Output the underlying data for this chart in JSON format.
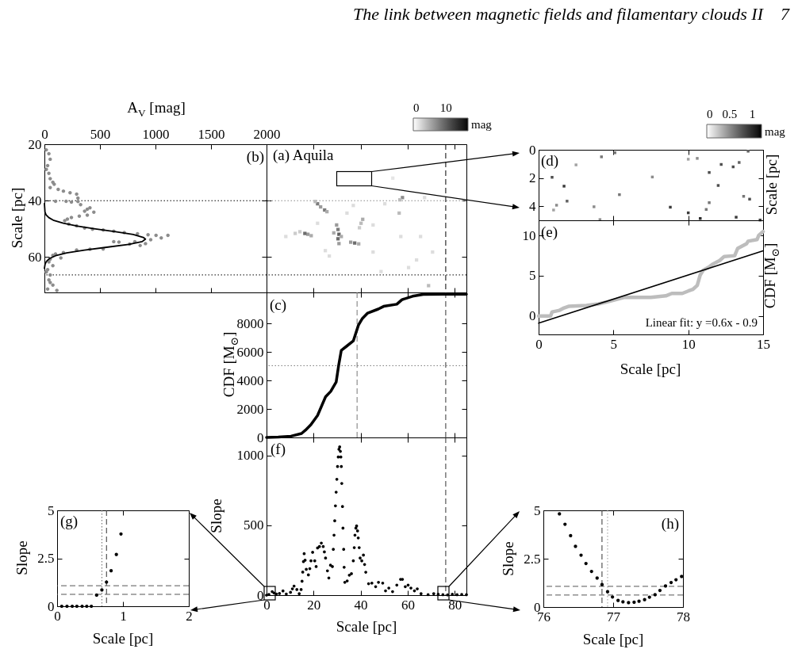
{
  "chart_data": [
    {
      "type": "scatter",
      "xlabel": "A$_{V}$ [mag]",
      "ylabel": "Scale [pc]",
      "annotations": [
        "(b)",
        "The link between magnetic fields and filamentary clouds II",
        "7"
      ],
      "xlim": [
        0,
        2000
      ],
      "xticks": [
        0,
        500,
        1000,
        1500,
        2000
      ],
      "ylim": [
        72.5,
        20
      ],
      "yticks": [
        20,
        40,
        60
      ],
      "ref_lines": [
        {
          "axis": "y",
          "value": 40,
          "line_style": "dotted",
          "color": "#000000"
        },
        {
          "axis": "y",
          "value": 66.3,
          "line_style": "dotted",
          "color": "#000000"
        }
      ],
      "series": [
        {
          "type": "scatter",
          "marker": "circle",
          "color": "#8c8c8c",
          "x": [
            17,
            40,
            52,
            29,
            17,
            40,
            52,
            76,
            88,
            52,
            124,
            171,
            231,
            290,
            302,
            100,
            195,
            243,
            302,
            326,
            410,
            386,
            362,
            445,
            386,
            314,
            243,
            207,
            183,
            219,
            290,
            362,
            433,
            529,
            624,
            719,
            838,
            933,
            1005,
            1112,
            1052,
            957,
            814,
            624,
            671,
            910,
            767,
            862,
            529,
            410,
            290,
            171,
            100,
            76,
            148,
            52,
            40,
            76,
            29,
            17,
            52,
            40,
            52,
            76,
            29,
            112
          ],
          "values": [
            22.0,
            23.4,
            25.3,
            27.6,
            28.9,
            30.3,
            32.2,
            33.5,
            34.2,
            35.4,
            36.0,
            36.6,
            37.2,
            37.7,
            39.1,
            40.2,
            40.2,
            40.5,
            40.3,
            41.4,
            42.5,
            43.0,
            43.7,
            44.1,
            45.1,
            45.5,
            46.0,
            46.5,
            47.1,
            48.3,
            48.9,
            49.7,
            50.1,
            50.4,
            50.8,
            51.3,
            51.7,
            52.1,
            52.3,
            52.3,
            53.2,
            53.8,
            54.5,
            54.5,
            54.7,
            55.2,
            55.4,
            55.9,
            57.1,
            57.2,
            57.5,
            58.4,
            58.9,
            59.4,
            60.3,
            60.7,
            61.7,
            63.0,
            64.4,
            65.3,
            66.3,
            68.1,
            69.0,
            69.9,
            71.3,
            71.8
          ]
        },
        {
          "type": "line",
          "color": "#000000",
          "x": [
            0,
            5,
            15,
            40,
            85,
            170,
            300,
            460,
            640,
            800,
            890,
            910,
            880,
            760,
            560,
            360,
            200,
            100,
            45,
            18,
            6,
            0
          ],
          "values": [
            41,
            44,
            45,
            46,
            47,
            48,
            49,
            50,
            51,
            52,
            53,
            53.6,
            54.5,
            55.5,
            56.5,
            57.5,
            58.5,
            59.5,
            60.5,
            61.5,
            62.5,
            64
          ]
        }
      ]
    },
    {
      "type": "scatter",
      "annotations": [
        "(a) Aquila"
      ],
      "xlim": [
        0,
        85
      ],
      "xticks": [
        0,
        20,
        40,
        60,
        80
      ],
      "ylim": [
        72.5,
        20
      ],
      "yticks": [
        20,
        40,
        60
      ],
      "tick_labels": false,
      "marker": "square",
      "clabel": "mag",
      "clim": [
        0,
        16.7
      ],
      "cticks": [
        0,
        10
      ],
      "ref_lines": [
        {
          "axis": "y",
          "value": 40,
          "line_style": "dotted",
          "color": "#888888"
        },
        {
          "axis": "y",
          "value": 66.3,
          "line_style": "dotted",
          "color": "#000000"
        },
        {
          "axis": "x",
          "value": 76.2,
          "line_style": "dashed",
          "color": "#000000"
        }
      ],
      "series": [
        {
          "x": [
            23.0,
            21.7,
            24.7,
            20.7,
            25.7,
            17.6,
            16.3,
            19.0,
            14.2,
            29.8,
            30.4,
            30.8,
            30.4,
            30.8,
            28.6,
            31.8,
            37.5,
            35.8,
            39.2,
            40.2,
            40.9,
            39.5,
            57.8,
            56.7,
            56.4,
            68.9,
            60.4,
            12.2,
            25.0,
            45.3,
            63.8,
            50.3,
            21.7,
            65.5,
            8.2,
            48.7,
            70.6,
            34.2,
            45.3,
            36.9,
            26.7,
            57.1,
            67.2,
            53.7
          ],
          "values": [
            42.2,
            41.1,
            43.3,
            40.3,
            43.9,
            51.9,
            51.6,
            52.4,
            51.0,
            48.6,
            50.2,
            51.9,
            53.5,
            55.2,
            51.4,
            52.7,
            55.0,
            54.7,
            55.3,
            48.0,
            46.6,
            49.6,
            38.9,
            39.7,
            44.4,
            70.1,
            63.7,
            51.6,
            57.7,
            58.2,
            61.0,
            41.1,
            48.0,
            52.7,
            52.7,
            65.1,
            58.2,
            44.4,
            48.6,
            41.7,
            59.6,
            52.7,
            38.9,
            32.0
          ],
          "cvalues": [
            6,
            8,
            8,
            4,
            5,
            6,
            9,
            5,
            3,
            6,
            8,
            10,
            9,
            6,
            5,
            5,
            9,
            6,
            5,
            4,
            5,
            3,
            7,
            4,
            4,
            4,
            2,
            3,
            2,
            2,
            2,
            2,
            2,
            2,
            2,
            2,
            2,
            2,
            2,
            2,
            2,
            2,
            2,
            1.5
          ]
        }
      ]
    },
    {
      "type": "scatter",
      "ylabel": "Scale [pc]",
      "annotations": [
        "(d)"
      ],
      "xlim": [
        0,
        15
      ],
      "xticks": [
        0,
        5,
        10,
        15
      ],
      "ylim": [
        5,
        0
      ],
      "yticks": [
        0,
        2,
        4
      ],
      "tick_labels": "y",
      "marker": "square",
      "clabel": "mag",
      "clim": [
        0,
        1.2
      ],
      "cticks": [
        0,
        0.5,
        1
      ],
      "series": [
        {
          "x": [
            0.9,
            1.7,
            1.9,
            4.2,
            5.1,
            5.4,
            8.8,
            10.0,
            10.8,
            11.4,
            12.0,
            12.2,
            13.0,
            13.4,
            14.0,
            14.1,
            13.2,
            14.8,
            13.7,
            11.4,
            7.6,
            3.7,
            1.2,
            2.5,
            10.0,
            10.6,
            11.2,
            1.0,
            4.1
          ],
          "values": [
            1.95,
            2.58,
            3.64,
            0.5,
            0.21,
            3.18,
            4.07,
            4.47,
            4.87,
            1.61,
            2.53,
            1.04,
            1.21,
            0.9,
            0.1,
            3.5,
            4.78,
            4.98,
            3.3,
            3.75,
            1.93,
            4.04,
            3.93,
            1.07,
            0.67,
            0.61,
            4.23,
            4.27,
            4.95
          ],
          "cvalues": [
            0.8,
            0.9,
            0.7,
            0.6,
            0.6,
            0.6,
            0.9,
            0.9,
            1,
            0.8,
            0.8,
            0.8,
            0.8,
            0.7,
            0.7,
            0.8,
            0.9,
            0.9,
            0.6,
            0.6,
            0.5,
            0.5,
            0.5,
            0.4,
            0.4,
            0.5,
            0.6,
            0.4,
            0.5
          ]
        }
      ]
    },
    {
      "type": "line",
      "xlabel": "Scale [pc]",
      "ylabel": "CDF [M$_{⊙}$]",
      "annotations": [
        "(e)",
        "Linear fit: y =0.6x - 0.9"
      ],
      "xlim": [
        0,
        15
      ],
      "xticks": [
        0,
        5,
        10,
        15
      ],
      "ylim": [
        -2.3,
        11.9
      ],
      "yticks": [
        0,
        5,
        10
      ],
      "series": [
        {
          "color": "#bdbdbd",
          "x": [
            0,
            0.8,
            0.9,
            1.4,
            1.7,
            2.0,
            3.2,
            4.0,
            4.7,
            5.1,
            5.7,
            6.4,
            7.5,
            8.5,
            8.9,
            9.6,
            10.0,
            10.3,
            10.6,
            10.8,
            11.0,
            11.4,
            11.6,
            12.1,
            12.4,
            13.1,
            13.3,
            13.9,
            14.0,
            14.6,
            14.7,
            15.0
          ],
          "values": [
            0,
            0,
            0.5,
            0.7,
            1.0,
            1.2,
            1.3,
            1.5,
            1.8,
            2.0,
            2.3,
            2.3,
            2.3,
            2.5,
            2.8,
            2.8,
            3.1,
            3.3,
            3.8,
            5.1,
            5.7,
            6.1,
            6.4,
            6.9,
            7.4,
            7.5,
            8.4,
            9.0,
            9.3,
            9.5,
            10.0,
            10.5
          ]
        },
        {
          "color": "#000000",
          "x": [
            0,
            15
          ],
          "values": [
            -0.9,
            8.1
          ]
        }
      ]
    },
    {
      "type": "line",
      "ylabel": "CDF [M$_{⊙}$]",
      "annotations": [
        "(c)"
      ],
      "xlim": [
        0,
        85
      ],
      "xticks": [
        0,
        20,
        40,
        60,
        80
      ],
      "ylim": [
        0,
        10200
      ],
      "yticks": [
        0,
        2000,
        4000,
        6000,
        8000
      ],
      "tick_labels": "y",
      "ref_lines": [
        {
          "axis": "x",
          "value": 38.5,
          "line_style": "dashed",
          "color": "#777777"
        },
        {
          "axis": "x",
          "value": 76.2,
          "line_style": "dashed",
          "color": "#333333"
        },
        {
          "axis": "y",
          "value": 5050,
          "line_style": "dotted",
          "color": "#777777"
        }
      ],
      "x": [
        0,
        5,
        10.4,
        14.9,
        16.6,
        18.9,
        21.7,
        25.1,
        27.3,
        29.6,
        30.7,
        31.8,
        34.0,
        36.9,
        39.1,
        40.8,
        43.0,
        47.5,
        49.8,
        55.4,
        57.6,
        62.1,
        66.6,
        75.6,
        85
      ],
      "series": [
        {
          "color": "#000000",
          "values": [
            0,
            30,
            90,
            280,
            520,
            900,
            1550,
            2860,
            3240,
            3890,
            5100,
            6130,
            6410,
            6790,
            7910,
            8380,
            8750,
            9030,
            9220,
            9370,
            9690,
            9930,
            10060,
            10080,
            10080
          ]
        }
      ]
    },
    {
      "type": "scatter",
      "xlabel": "Scale [pc]",
      "ylabel": "Slope",
      "annotations": [
        "(f)"
      ],
      "xlim": [
        0,
        85
      ],
      "xticks": [
        0,
        20,
        40,
        60,
        80
      ],
      "ylim": [
        0,
        1130
      ],
      "yticks": [
        0,
        500,
        1000
      ],
      "marker": "circle",
      "ref_lines": [
        {
          "axis": "x",
          "value": 76.2,
          "line_style": "dashed",
          "color": "#333333"
        }
      ],
      "x": [
        0,
        1,
        2.4,
        3.2,
        4.2,
        5.5,
        7.0,
        8.4,
        10.2,
        11.0,
        11.7,
        12.9,
        13.9,
        14.7,
        15.1,
        15.4,
        15.7,
        16.0,
        16.4,
        16.9,
        17.8,
        18.4,
        18.9,
        19.6,
        20.5,
        21.1,
        21.7,
        22.5,
        23.3,
        24.1,
        24.6,
        25.1,
        25.9,
        26.5,
        27.2,
        28.0,
        28.4,
        28.7,
        29.0,
        29.3,
        29.6,
        29.9,
        30.2,
        30.5,
        30.8,
        31.1,
        31.4,
        31.6,
        31.8,
        32.0,
        32.3,
        32.5,
        32.8,
        33.0,
        33.3,
        34.3,
        35.2,
        36.1,
        36.9,
        37.3,
        37.6,
        38.0,
        38.3,
        38.7,
        39.0,
        39.4,
        39.8,
        40.5,
        41.2,
        41.7,
        42.2,
        43.4,
        44.8,
        46.4,
        47.6,
        49.4,
        50.6,
        52.0,
        53.6,
        55.4,
        57.0,
        57.8,
        59.0,
        60.2,
        61.4,
        62.9,
        64.1,
        65.7,
        68.7,
        71.1,
        73,
        75,
        77,
        79,
        81,
        83,
        85
      ],
      "series": [
        {
          "color": "#000000",
          "values": [
            0,
            5,
            25,
            15,
            8,
            12,
            30,
            8,
            20,
            45,
            65,
            40,
            10,
            40,
            100,
            165,
            240,
            297,
            250,
            185,
            145,
            190,
            246,
            307,
            246,
            205,
            338,
            348,
            373,
            348,
            310,
            266,
            174,
            123,
            215,
            205,
            328,
            430,
            533,
            640,
            738,
            830,
            922,
            990,
            1045,
            1062,
            1030,
            990,
            922,
            800,
            635,
            480,
            328,
            200,
            92,
            102,
            143,
            154,
            246,
            340,
            430,
            480,
            496,
            460,
            410,
            340,
            266,
            246,
            287,
            220,
            164,
            82,
            86,
            61,
            92,
            86,
            31,
            51,
            25,
            72,
            113,
            113,
            61,
            72,
            51,
            31,
            45,
            10,
            4,
            10,
            6,
            3,
            2,
            6,
            3,
            5,
            3
          ]
        }
      ]
    },
    {
      "type": "scatter",
      "xlabel": "Scale [pc]",
      "ylabel": "Slope",
      "annotations": [
        "(g)"
      ],
      "xlim": [
        0,
        2
      ],
      "xticks": [
        0,
        1,
        2
      ],
      "ylim": [
        0,
        5
      ],
      "yticks": [
        0,
        2.5,
        5
      ],
      "marker": "circle",
      "ref_lines": [
        {
          "axis": "x",
          "value": 0.68,
          "line_style": "dotted",
          "color": "#666666"
        },
        {
          "axis": "x",
          "value": 0.75,
          "line_style": "dashed",
          "color": "#333333"
        },
        {
          "axis": "y",
          "value": 1.07,
          "line_style": "dashed",
          "color": "#555555"
        },
        {
          "axis": "y",
          "value": 0.62,
          "line_style": "dashed",
          "color": "#555555"
        }
      ],
      "x": [
        0.07,
        0.15,
        0.23,
        0.3,
        0.38,
        0.45,
        0.52,
        0.6,
        0.68,
        0.75,
        0.82,
        0.9,
        0.97
      ],
      "series": [
        {
          "color": "#000000",
          "values": [
            0,
            0,
            0,
            0,
            0,
            0,
            0,
            0.58,
            0.85,
            1.26,
            1.85,
            2.7,
            3.77
          ]
        }
      ]
    },
    {
      "type": "scatter",
      "xlabel": "Scale [pc]",
      "ylabel": "Slope",
      "annotations": [
        "(h)"
      ],
      "xlim": [
        76,
        78
      ],
      "xticks": [
        76,
        77,
        78
      ],
      "ylim": [
        0,
        5
      ],
      "yticks": [
        0,
        2.5,
        5
      ],
      "marker": "circle",
      "ref_lines": [
        {
          "axis": "x",
          "value": 76.84,
          "line_style": "dashed",
          "color": "#333333"
        },
        {
          "axis": "x",
          "value": 76.92,
          "line_style": "dotted",
          "color": "#999999"
        },
        {
          "axis": "y",
          "value": 1.07,
          "line_style": "dashed",
          "color": "#555555"
        },
        {
          "axis": "y",
          "value": 0.62,
          "line_style": "dashed",
          "color": "#555555"
        }
      ],
      "x": [
        76.23,
        76.31,
        76.39,
        76.46,
        76.54,
        76.61,
        76.69,
        76.77,
        76.84,
        76.92,
        76.99,
        77.07,
        77.14,
        77.22,
        77.3,
        77.37,
        77.45,
        77.52,
        77.6,
        77.67,
        77.75,
        77.83,
        77.9,
        77.98
      ],
      "series": [
        {
          "color": "#000000",
          "values": [
            4.82,
            4.28,
            3.69,
            3.14,
            2.68,
            2.25,
            1.84,
            1.5,
            1.16,
            0.79,
            0.52,
            0.34,
            0.27,
            0.23,
            0.25,
            0.3,
            0.38,
            0.51,
            0.64,
            0.86,
            1.09,
            1.27,
            1.41,
            1.58
          ]
        }
      ]
    }
  ]
}
